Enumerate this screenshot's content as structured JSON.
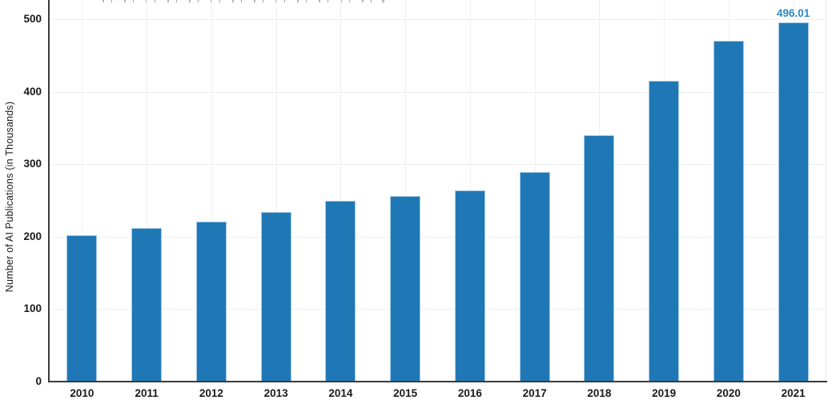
{
  "chart_data": {
    "type": "bar",
    "title": "",
    "categories": [
      "2010",
      "2011",
      "2012",
      "2013",
      "2014",
      "2015",
      "2016",
      "2017",
      "2018",
      "2019",
      "2020",
      "2021"
    ],
    "values": [
      202,
      212,
      221,
      234,
      249,
      256,
      264,
      289,
      340,
      415,
      470,
      496.01
    ],
    "xlabel": "",
    "ylabel": "Number of AI Publications (in Thousands)",
    "ylim": [
      0,
      500
    ],
    "yticks": [
      0,
      100,
      200,
      300,
      400,
      500
    ],
    "grid": true,
    "legend": "none",
    "last_value_label": "496.01",
    "colors": {
      "bar_fill": "#1f78b5",
      "bar_edge": "#a3c9e6",
      "value_label": "#2f86c3",
      "axis": "#3b3b3b",
      "gridline": "#efefef",
      "tick_text": "#1a1a1a",
      "background": "#ffffff"
    },
    "notes": "title line cropped out at top edge of screenshot"
  }
}
